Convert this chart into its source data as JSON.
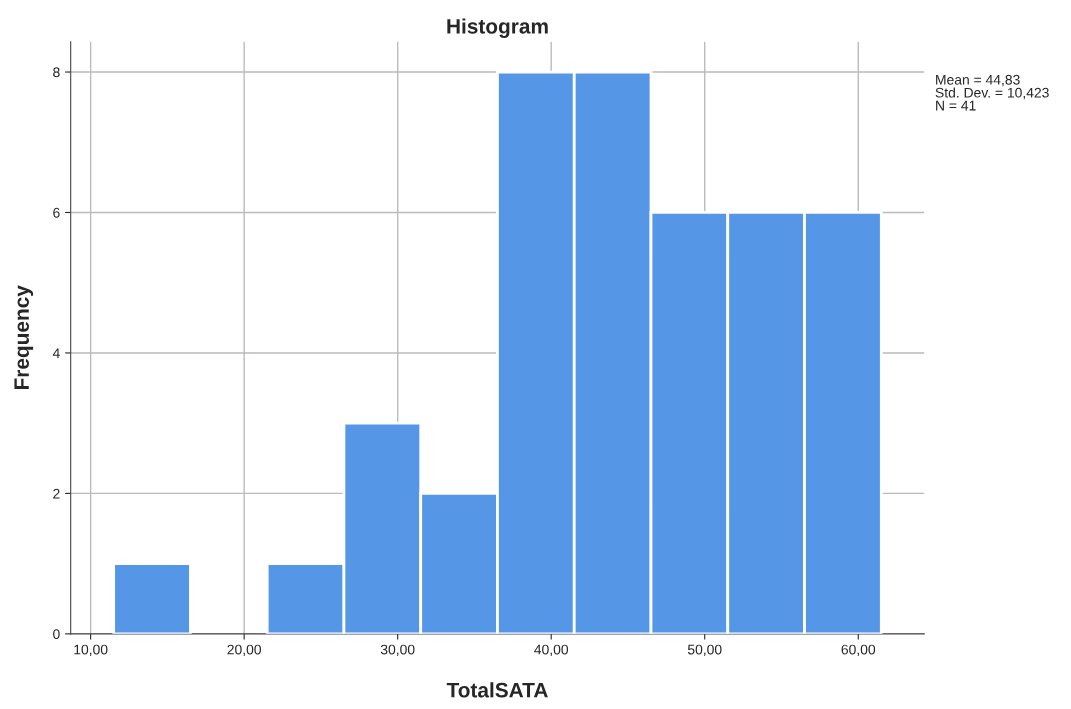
{
  "chart_data": {
    "type": "histogram",
    "title": "Histogram",
    "xlabel": "TotalSATA",
    "ylabel": "Frequency",
    "bins": [
      11.5,
      16.5,
      21.5,
      26.5,
      31.5,
      36.5,
      41.5,
      46.5,
      51.5,
      56.5,
      61.5
    ],
    "values": [
      1,
      0,
      1,
      3,
      2,
      8,
      8,
      6,
      6,
      6
    ],
    "color": "#5596e6",
    "xlim": [
      8.7,
      64.3
    ],
    "xticks": [
      {
        "value": 10,
        "label": "10,00"
      },
      {
        "value": 20,
        "label": "20,00"
      },
      {
        "value": 30,
        "label": "30,00"
      },
      {
        "value": 40,
        "label": "40,00"
      },
      {
        "value": 50,
        "label": "50,00"
      },
      {
        "value": 60,
        "label": "60,00"
      }
    ],
    "ylim": [
      0,
      8.43
    ],
    "yticks": [
      0,
      2,
      4,
      6,
      8
    ],
    "grid": true,
    "annotations": [
      "Mean = 44,83\nStd. Dev. = 10,423\nN = 41"
    ]
  }
}
